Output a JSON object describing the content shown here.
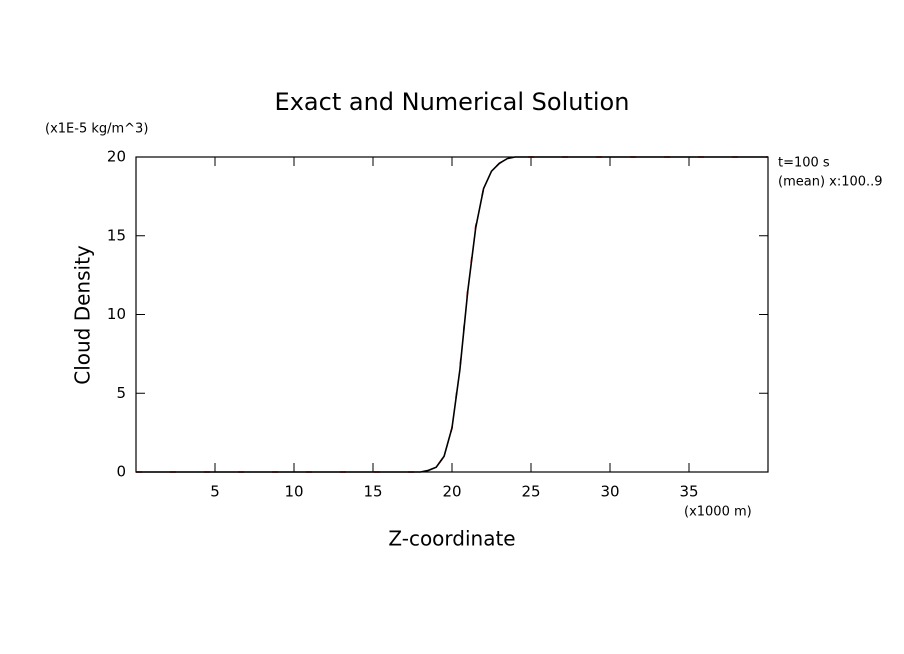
{
  "chart_data": {
    "type": "line",
    "title": "Exact and Numerical Solution",
    "y_unit": "(x1E-5 kg/m^3)",
    "y_label": "Cloud Density",
    "x_label": "Z-coordinate",
    "x_unit": "(x1000 m)",
    "annotations": [
      "t=100 s",
      "(mean) x:100..9"
    ],
    "x": [
      0,
      2,
      4,
      6,
      8,
      10,
      12,
      14,
      16,
      18,
      18.5,
      19,
      19.5,
      20,
      20.5,
      21,
      21.5,
      22,
      22.5,
      23,
      23.5,
      24,
      25,
      27,
      30,
      33,
      36,
      40
    ],
    "series": [
      {
        "name": "Numerical",
        "color": "#ff0000",
        "dash": true,
        "values": [
          0,
          0,
          0,
          0,
          0,
          0,
          0,
          0,
          0,
          0,
          0.1,
          0.3,
          1.0,
          2.8,
          6.6,
          11.6,
          15.6,
          18.0,
          19.1,
          19.6,
          19.9,
          20,
          20,
          20,
          20,
          20,
          20,
          20
        ]
      },
      {
        "name": "Exact",
        "color": "#000000",
        "dash": false,
        "values": [
          0,
          0,
          0,
          0,
          0,
          0,
          0,
          0,
          0,
          0,
          0.1,
          0.3,
          1.0,
          2.8,
          6.5,
          11.5,
          15.5,
          18.0,
          19.1,
          19.6,
          19.9,
          20,
          20,
          20,
          20,
          20,
          20,
          20
        ]
      }
    ],
    "xlim": [
      0,
      40
    ],
    "xticks": [
      5,
      10,
      15,
      20,
      25,
      30,
      35
    ],
    "ylim": [
      0,
      20
    ],
    "yticks": [
      0,
      5,
      10,
      15,
      20
    ]
  }
}
